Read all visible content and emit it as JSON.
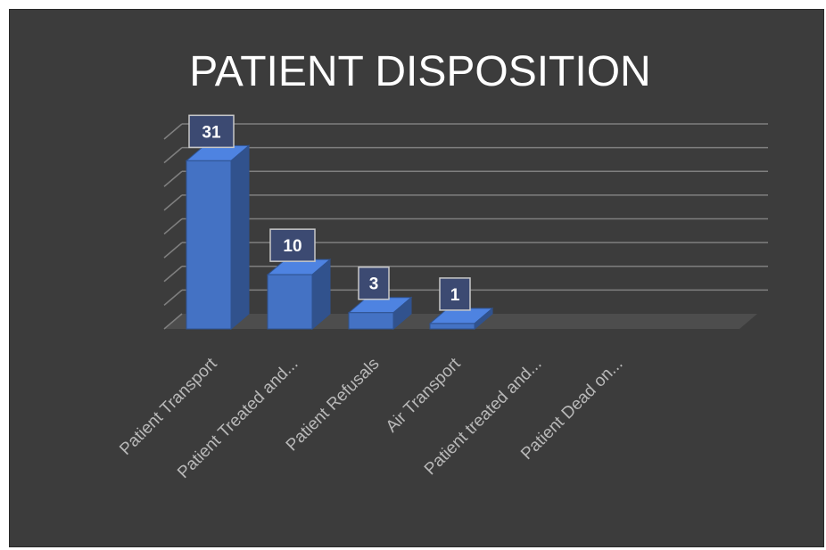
{
  "chart_data": {
    "type": "bar",
    "title": "PATIENT DISPOSITION",
    "categories": [
      "Patient Transport",
      "Patient Treated and...",
      "Patient Refusals",
      "Air Transport",
      "Patient treated and...",
      "Patient Dead on..."
    ],
    "values": [
      31,
      10,
      3,
      1,
      0,
      0
    ],
    "data_labels": [
      "31",
      "10",
      "3",
      "1",
      "",
      ""
    ],
    "ylim": [
      0,
      35
    ],
    "grid": true,
    "legend": "none",
    "colors": {
      "background": "#3c3c3c",
      "bar": "#4472c4",
      "grid": "#7f7f7f",
      "text": "#b8b8b8",
      "title": "#ffffff"
    }
  }
}
